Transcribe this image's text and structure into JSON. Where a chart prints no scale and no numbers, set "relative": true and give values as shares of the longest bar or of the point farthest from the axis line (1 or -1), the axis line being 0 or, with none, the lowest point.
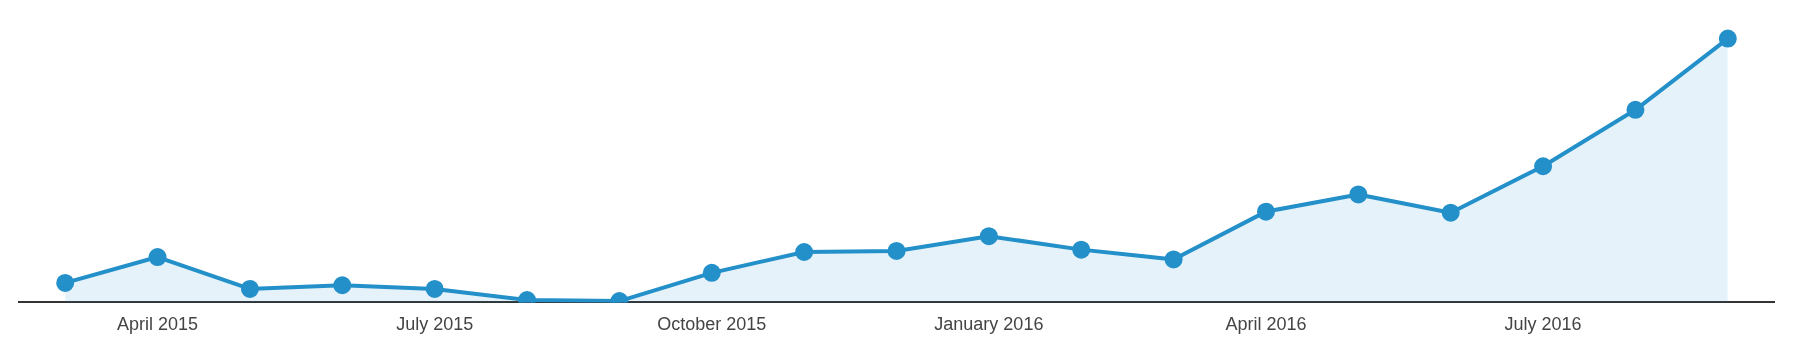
{
  "chart_data": {
    "type": "area",
    "relative": true,
    "categories": [
      null,
      "April 2015",
      null,
      null,
      "July 2015",
      null,
      null,
      "October 2015",
      null,
      null,
      "January 2016",
      null,
      null,
      "April 2016",
      null,
      null,
      "July 2016",
      null,
      null
    ],
    "series": [
      {
        "color": "#2490c9",
        "values": [
          0.074,
          0.172,
          0.051,
          0.065,
          0.051,
          0.009,
          0.005,
          0.112,
          0.191,
          0.195,
          0.251,
          0.2,
          0.163,
          0.344,
          0.409,
          0.34,
          0.516,
          0.73,
          1
        ]
      }
    ],
    "marker": "circle",
    "legend": false
  }
}
